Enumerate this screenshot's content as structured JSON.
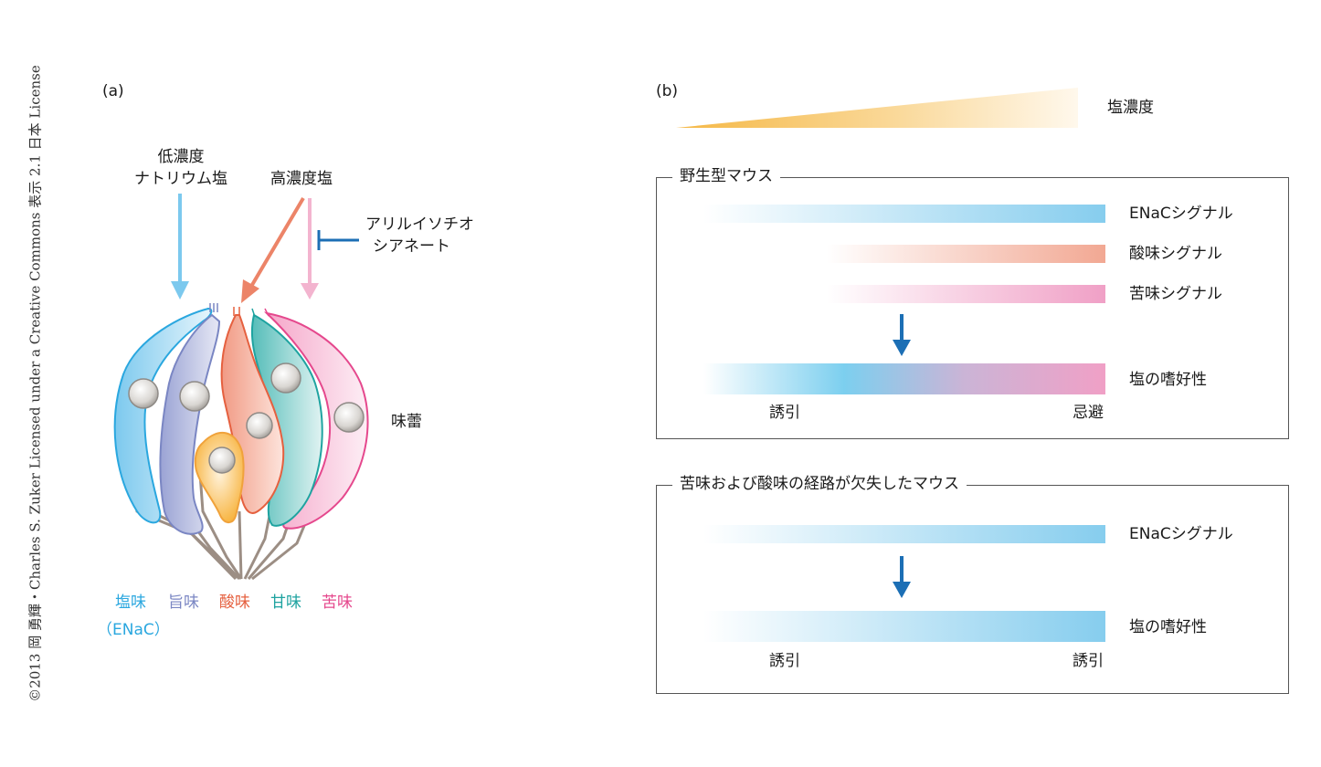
{
  "copyright": "©2013 岡 勇輝・Charles S. Zuker Licensed under a Creative Commons 表示 2.1 日本 License",
  "panel_a": {
    "label": "(a)",
    "low_salt": [
      "低濃度",
      "ナトリウム塩"
    ],
    "high_salt": "高濃度塩",
    "inhibitor": [
      "アリルイソチオ",
      "シアネート"
    ],
    "taste_bud": "味蕾",
    "cells": {
      "salty": "塩味",
      "enac": "（ENaC）",
      "umami": "旨味",
      "sour": "酸味",
      "sweet": "甘味",
      "bitter": "苦味"
    },
    "colors": {
      "salty": "#2aa7df",
      "umami": "#7a86c3",
      "sour": "#e5603f",
      "sweet": "#1ea3a0",
      "bitter": "#e5488d"
    }
  },
  "panel_b": {
    "label": "(b)",
    "concentration_label": "塩濃度",
    "wild_type": {
      "title": "野生型マウス",
      "signals": [
        "ENaCシグナル",
        "酸味シグナル",
        "苦味シグナル"
      ],
      "result": "塩の嗜好性",
      "left_label": "誘引",
      "right_label": "忌避"
    },
    "knockout": {
      "title": "苦味および酸味の経路が欠失したマウス",
      "signals": [
        "ENaCシグナル"
      ],
      "result": "塩の嗜好性",
      "left_label": "誘引",
      "right_label": "誘引"
    }
  }
}
